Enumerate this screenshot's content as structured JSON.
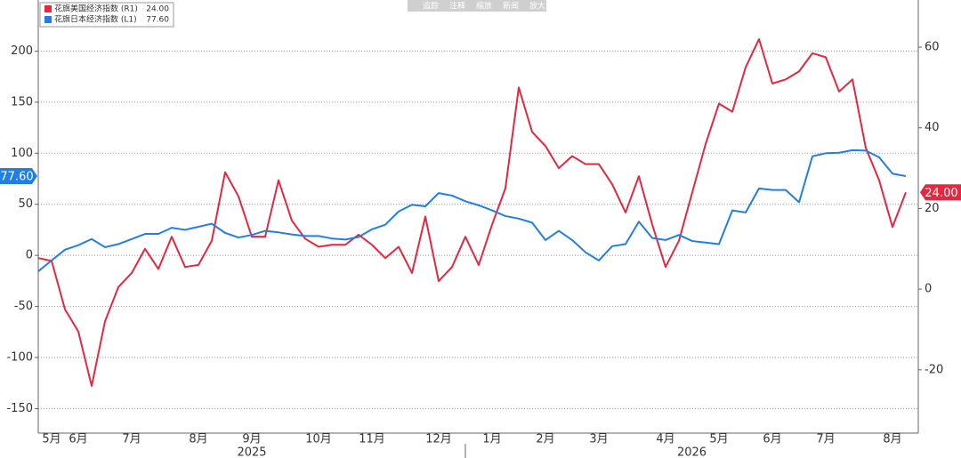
{
  "chart_data": {
    "type": "line",
    "toolbar": [
      "追踪",
      "注释",
      "缩放",
      "新闻",
      "放大"
    ],
    "categories": [
      null,
      "5月",
      null,
      "6月",
      null,
      null,
      null,
      "7月",
      null,
      null,
      null,
      null,
      "8月",
      null,
      null,
      null,
      "9月",
      null,
      null,
      null,
      null,
      "10月",
      null,
      null,
      null,
      "11月",
      null,
      null,
      null,
      null,
      "12月",
      null,
      null,
      null,
      "1月",
      null,
      null,
      null,
      "2月",
      null,
      null,
      null,
      "3月",
      null,
      null,
      null,
      null,
      "4月",
      null,
      null,
      null,
      "5月",
      null,
      null,
      null,
      "6月",
      null,
      null,
      null,
      "7月",
      null,
      null,
      null,
      null,
      "8月",
      null
    ],
    "years": [
      "2025",
      "2026"
    ],
    "series": [
      {
        "name": "花旗美国经济指数 (R1)",
        "color": "#e8263f",
        "axis": "y2",
        "values": [
          7.7,
          7,
          -5,
          -10.5,
          -24,
          -8,
          0.5,
          4,
          10,
          5,
          13,
          5.5,
          6,
          12,
          29,
          23,
          13,
          13,
          27,
          17,
          12.5,
          10.5,
          11,
          11,
          13.5,
          11,
          7.7,
          10.5,
          4,
          18,
          2,
          5.5,
          13,
          6,
          16,
          25,
          50,
          39,
          35.5,
          30,
          33,
          31,
          31,
          26,
          19,
          28,
          16,
          5.5,
          12,
          24,
          36,
          46,
          44,
          55,
          62,
          51,
          52,
          54,
          58.5,
          57.5,
          49,
          52,
          35,
          27,
          15.4,
          24
        ],
        "value_labels": [
          null,
          null,
          null,
          null,
          null,
          null,
          null,
          null,
          null,
          null,
          null,
          null,
          null,
          null,
          null,
          null,
          null,
          null,
          null,
          null,
          null,
          null,
          null,
          null,
          null,
          null,
          null,
          null,
          null,
          null,
          null,
          null,
          null,
          null,
          null,
          null,
          null,
          null,
          null,
          null,
          null,
          null,
          null,
          null,
          null,
          null,
          null,
          null,
          null,
          null,
          null,
          null,
          null,
          null,
          null,
          null,
          null,
          null,
          null,
          null,
          null,
          null,
          null,
          null,
          null,
          "24.00"
        ]
      },
      {
        "name": "花旗日本经济指数 (L1)",
        "color": "#1f7fe6",
        "axis": "y",
        "values": [
          -15.6,
          -5,
          5.5,
          10,
          16,
          8,
          11,
          16,
          21,
          21,
          27,
          25,
          28,
          31,
          22,
          17.5,
          20,
          24,
          22.5,
          20.5,
          19,
          19,
          16.5,
          15.5,
          18,
          25.5,
          30,
          43,
          49.5,
          48,
          61,
          58.5,
          53,
          49,
          44,
          38.5,
          36,
          32,
          15,
          24,
          15,
          3,
          -5,
          9,
          11,
          33,
          17,
          15,
          20,
          14,
          12.5,
          11,
          44,
          42,
          65.5,
          64,
          64,
          52,
          97,
          100,
          100.5,
          103,
          102.5,
          96,
          80,
          77.6
        ],
        "value_labels": [
          null,
          null,
          null,
          null,
          null,
          null,
          null,
          null,
          null,
          null,
          null,
          null,
          null,
          null,
          null,
          null,
          null,
          null,
          null,
          null,
          null,
          null,
          null,
          null,
          null,
          null,
          null,
          null,
          null,
          null,
          null,
          null,
          null,
          null,
          null,
          null,
          null,
          null,
          null,
          null,
          null,
          null,
          null,
          null,
          null,
          null,
          null,
          null,
          null,
          null,
          null,
          null,
          null,
          null,
          null,
          null,
          null,
          null,
          null,
          null,
          null,
          null,
          null,
          null,
          null,
          "77.60"
        ]
      }
    ],
    "ylim": [
      -174,
      250
    ],
    "yticks": [
      -150,
      -100,
      -50,
      0,
      50,
      100,
      150,
      200
    ],
    "y2lim": [
      -35.7,
      71.7
    ],
    "y2ticks": [
      -20,
      0,
      20,
      40,
      60
    ],
    "grid": true
  }
}
